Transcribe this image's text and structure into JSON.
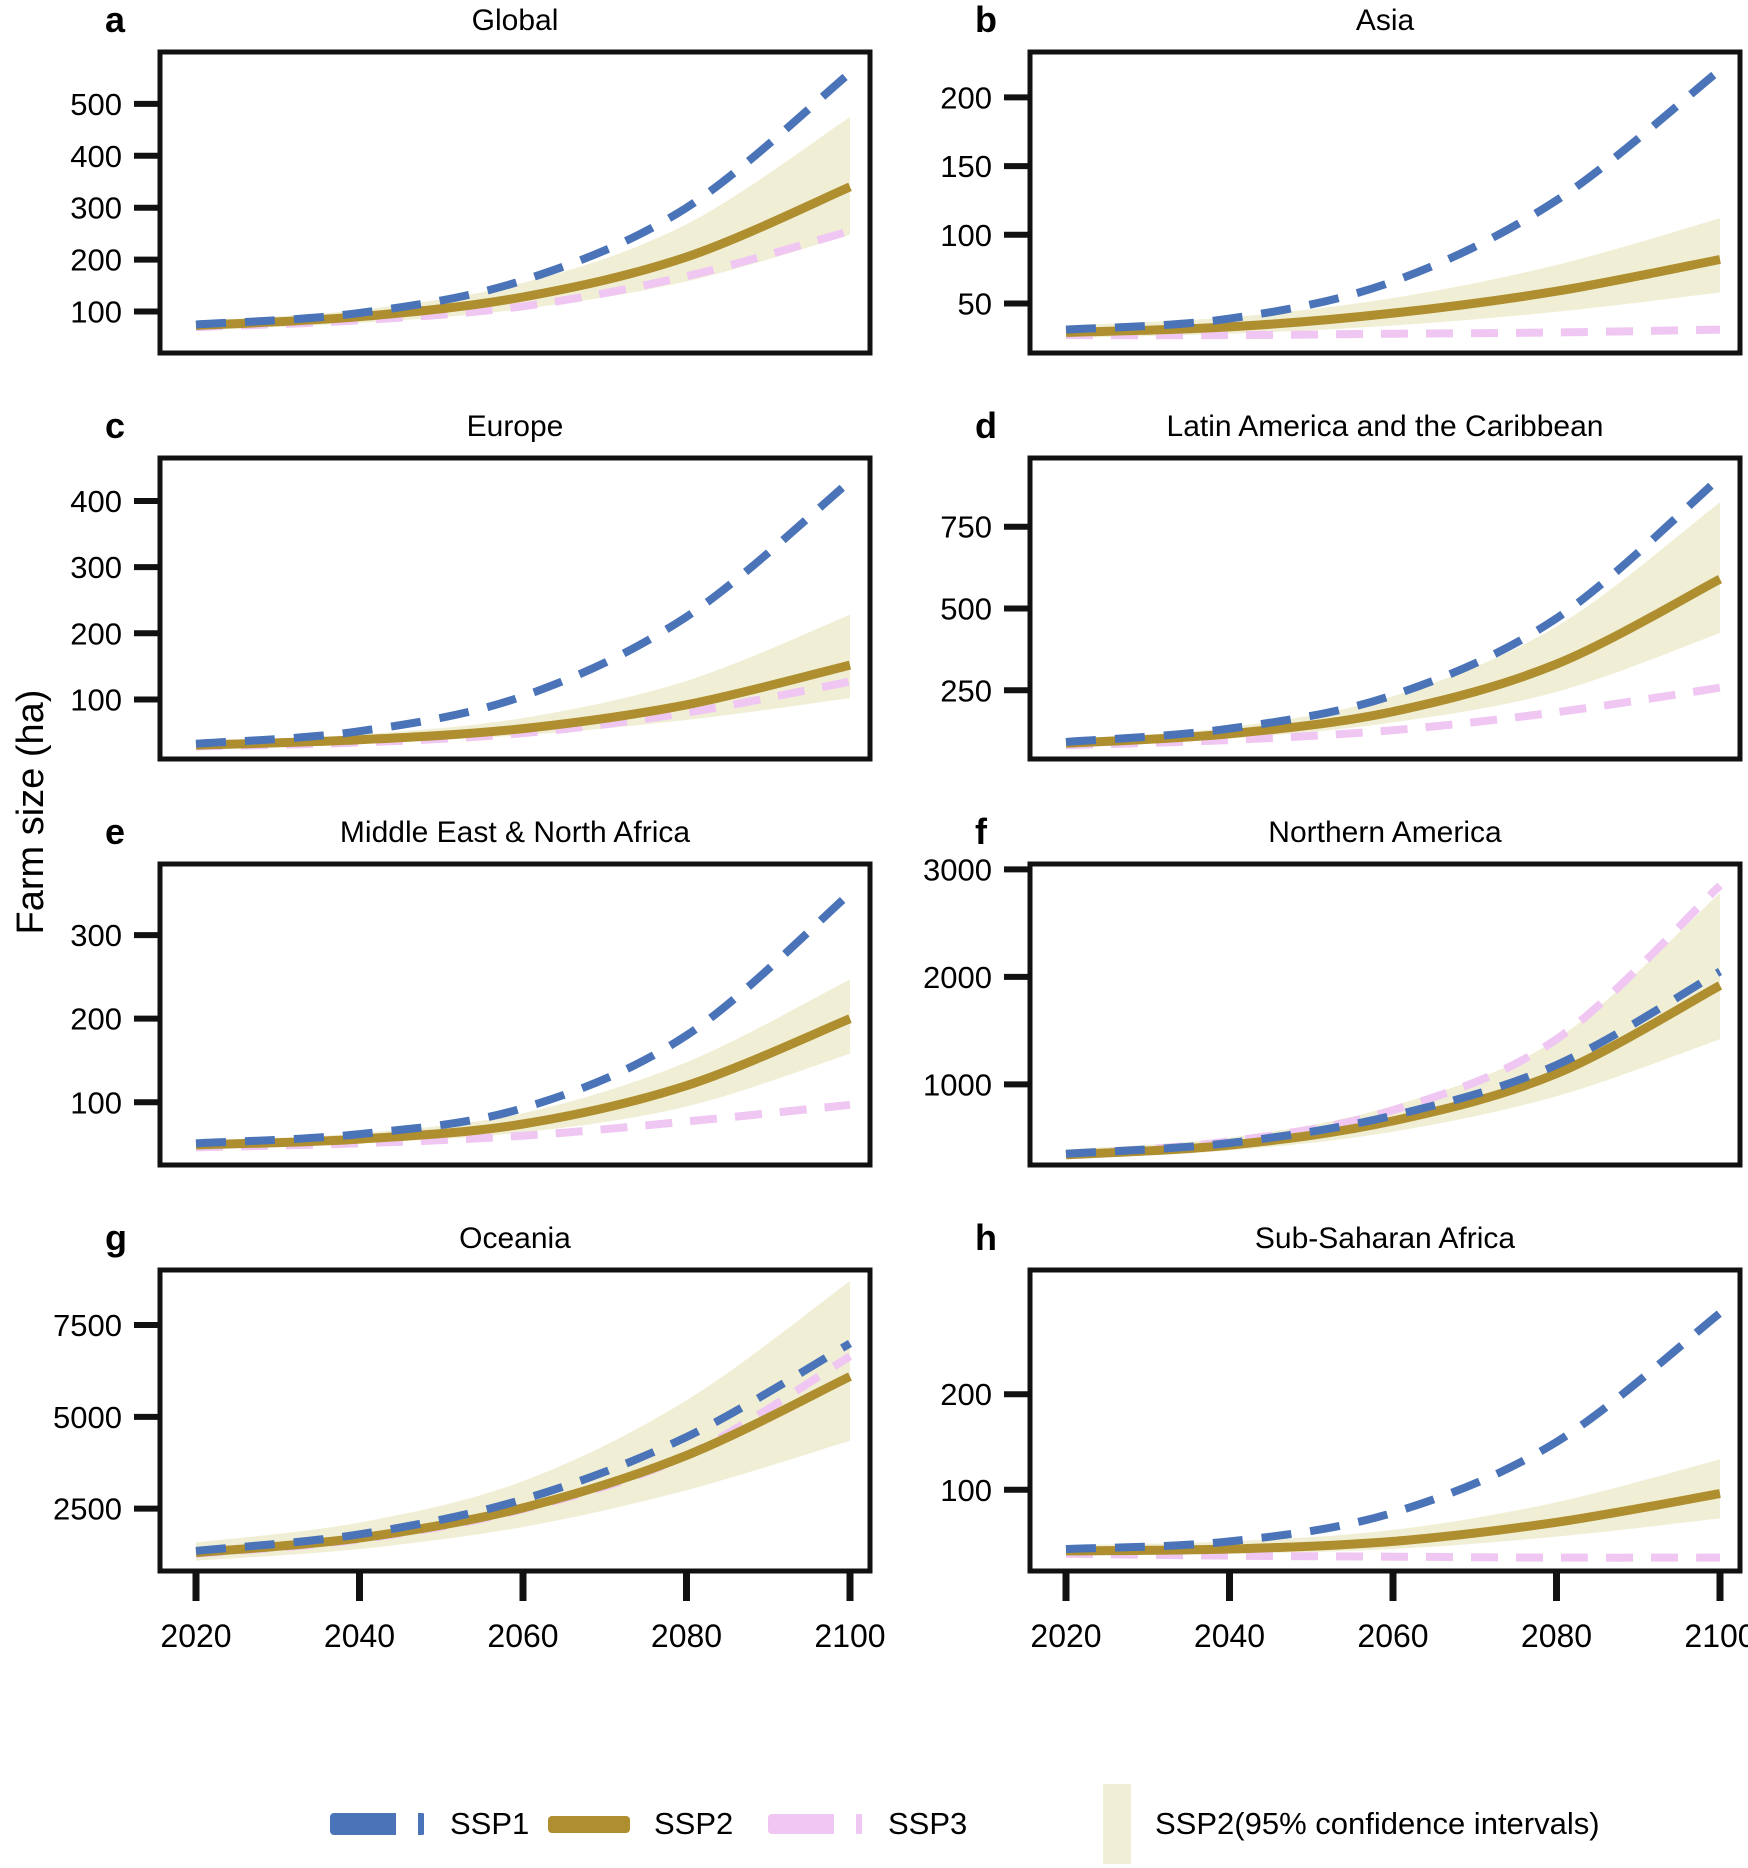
{
  "figure": {
    "y_axis_label": "Farm size (ha)",
    "colors": {
      "ssp1": "#4a73b8",
      "ssp2": "#ae8e2e",
      "ssp3": "#efc7f2",
      "ssp2_ci_band": "#f0efd5",
      "axis": "#111111"
    },
    "legend": [
      {
        "key": "ssp1",
        "label": "SSP1",
        "style": "dashed"
      },
      {
        "key": "ssp2",
        "label": "SSP2",
        "style": "solid"
      },
      {
        "key": "ssp3",
        "label": "SSP3",
        "style": "dashed"
      },
      {
        "key": "ssp2_ci",
        "label": "SSP2(95% confidence intervals)",
        "style": "fill"
      }
    ]
  },
  "chart_data": [
    {
      "type": "line",
      "letter": "a",
      "title": "Global",
      "x": [
        2020,
        2040,
        2060,
        2080,
        2100
      ],
      "xticks": [
        2020,
        2040,
        2060,
        2080,
        2100
      ],
      "show_xticks": false,
      "yticks": [
        100,
        200,
        300,
        400,
        500
      ],
      "ylim": [
        20,
        600
      ],
      "series": [
        {
          "name": "SSP1",
          "values": [
            75,
            97,
            160,
            300,
            560
          ]
        },
        {
          "name": "SSP2",
          "values": [
            73,
            90,
            128,
            205,
            340
          ]
        },
        {
          "name": "SSP3",
          "values": [
            70,
            83,
            110,
            168,
            255
          ]
        }
      ],
      "band": {
        "name": "SSP2 95% confidence interval",
        "low": [
          64,
          78,
          105,
          158,
          248
        ],
        "high": [
          82,
          103,
          155,
          268,
          475
        ]
      }
    },
    {
      "type": "line",
      "letter": "b",
      "title": "Asia",
      "x": [
        2020,
        2040,
        2060,
        2080,
        2100
      ],
      "xticks": [
        2020,
        2040,
        2060,
        2080,
        2100
      ],
      "show_xticks": false,
      "yticks": [
        50,
        100,
        150,
        200
      ],
      "ylim": [
        14,
        233
      ],
      "series": [
        {
          "name": "SSP1",
          "values": [
            31,
            39,
            66,
            125,
            220
          ]
        },
        {
          "name": "SSP2",
          "values": [
            29,
            33,
            43,
            59,
            82
          ]
        },
        {
          "name": "SSP3",
          "values": [
            27,
            27,
            28,
            29,
            31
          ]
        }
      ],
      "band": {
        "name": "SSP2 95% confidence interval",
        "low": [
          25,
          28,
          34,
          44,
          58
        ],
        "high": [
          34,
          40,
          54,
          78,
          112
        ]
      }
    },
    {
      "type": "line",
      "letter": "c",
      "title": "Europe",
      "x": [
        2020,
        2040,
        2060,
        2080,
        2100
      ],
      "xticks": [
        2020,
        2040,
        2060,
        2080,
        2100
      ],
      "show_xticks": false,
      "yticks": [
        100,
        200,
        300,
        400
      ],
      "ylim": [
        10,
        465
      ],
      "series": [
        {
          "name": "SSP1",
          "values": [
            33,
            52,
            105,
            225,
            430
          ]
        },
        {
          "name": "SSP2",
          "values": [
            31,
            39,
            56,
            92,
            152
          ]
        },
        {
          "name": "SSP3",
          "values": [
            29,
            35,
            49,
            80,
            127
          ]
        }
      ],
      "band": {
        "name": "SSP2 95% confidence interval",
        "low": [
          27,
          34,
          46,
          69,
          102
        ],
        "high": [
          36,
          47,
          72,
          128,
          228
        ]
      }
    },
    {
      "type": "line",
      "letter": "d",
      "title": "Latin America and the Caribbean",
      "x": [
        2020,
        2040,
        2060,
        2080,
        2100
      ],
      "xticks": [
        2020,
        2040,
        2060,
        2080,
        2100
      ],
      "show_xticks": false,
      "yticks": [
        250,
        500,
        750
      ],
      "ylim": [
        40,
        960
      ],
      "series": [
        {
          "name": "SSP1",
          "values": [
            92,
            133,
            235,
            470,
            900
          ]
        },
        {
          "name": "SSP2",
          "values": [
            88,
            117,
            185,
            330,
            590
          ]
        },
        {
          "name": "SSP3",
          "values": [
            82,
            98,
            128,
            183,
            258
          ]
        }
      ],
      "band": {
        "name": "SSP2 95% confidence interval",
        "low": [
          78,
          102,
          152,
          245,
          425
        ],
        "high": [
          100,
          137,
          232,
          445,
          825
        ]
      }
    },
    {
      "type": "line",
      "letter": "e",
      "title": "Middle East & North Africa",
      "x": [
        2020,
        2040,
        2060,
        2080,
        2100
      ],
      "xticks": [
        2020,
        2040,
        2060,
        2080,
        2100
      ],
      "show_xticks": false,
      "yticks": [
        100,
        200,
        300
      ],
      "ylim": [
        25,
        385
      ],
      "series": [
        {
          "name": "SSP1",
          "values": [
            51,
            62,
            93,
            180,
            350
          ]
        },
        {
          "name": "SSP2",
          "values": [
            49,
            56,
            74,
            120,
            200
          ]
        },
        {
          "name": "SSP3",
          "values": [
            46,
            51,
            60,
            77,
            97
          ]
        }
      ],
      "band": {
        "name": "SSP2 95% confidence interval",
        "low": [
          45,
          51,
          64,
          95,
          158
        ],
        "high": [
          54,
          63,
          87,
          148,
          247
        ]
      }
    },
    {
      "type": "line",
      "letter": "f",
      "title": "Northern America",
      "x": [
        2020,
        2040,
        2060,
        2080,
        2100
      ],
      "xticks": [
        2020,
        2040,
        2060,
        2080,
        2100
      ],
      "show_xticks": false,
      "yticks": [
        1000,
        2000,
        3000
      ],
      "ylim": [
        250,
        3050
      ],
      "series": [
        {
          "name": "SSP1",
          "values": [
            355,
            455,
            710,
            1180,
            2050
          ]
        },
        {
          "name": "SSP2",
          "values": [
            345,
            435,
            660,
            1100,
            1920
          ]
        },
        {
          "name": "SSP3",
          "values": [
            350,
            470,
            760,
            1420,
            2850
          ]
        }
      ],
      "band": {
        "name": "SSP2 95% confidence interval",
        "low": [
          310,
          385,
          560,
          890,
          1420
        ],
        "high": [
          395,
          505,
          800,
          1420,
          2780
        ]
      }
    },
    {
      "type": "line",
      "letter": "g",
      "title": "Oceania",
      "x": [
        2020,
        2040,
        2060,
        2080,
        2100
      ],
      "xticks": [
        2020,
        2040,
        2060,
        2080,
        2100
      ],
      "show_xticks": true,
      "yticks": [
        2500,
        5000,
        7500
      ],
      "ylim": [
        800,
        9000
      ],
      "series": [
        {
          "name": "SSP1",
          "values": [
            1350,
            1800,
            2750,
            4450,
            7000
          ]
        },
        {
          "name": "SSP2",
          "values": [
            1300,
            1700,
            2520,
            3950,
            6100
          ]
        },
        {
          "name": "SSP3",
          "values": [
            1270,
            1660,
            2480,
            3950,
            6650
          ]
        }
      ],
      "band": {
        "name": "SSP2 95% confidence interval",
        "low": [
          1080,
          1400,
          2000,
          3000,
          4350
        ],
        "high": [
          1580,
          2120,
          3250,
          5450,
          8700
        ]
      }
    },
    {
      "type": "line",
      "letter": "h",
      "title": "Sub-Saharan Africa",
      "x": [
        2020,
        2040,
        2060,
        2080,
        2100
      ],
      "xticks": [
        2020,
        2040,
        2060,
        2080,
        2100
      ],
      "show_xticks": true,
      "yticks": [
        100,
        200
      ],
      "ylim": [
        15,
        330
      ],
      "series": [
        {
          "name": "SSP1",
          "values": [
            38,
            46,
            76,
            150,
            285
          ]
        },
        {
          "name": "SSP2",
          "values": [
            36,
            38,
            46,
            66,
            96
          ]
        },
        {
          "name": "SSP3",
          "values": [
            33,
            31,
            30,
            29,
            29
          ]
        }
      ],
      "band": {
        "name": "SSP2 95% confidence interval",
        "low": [
          31,
          33,
          38,
          51,
          70
        ],
        "high": [
          42,
          46,
          58,
          87,
          132
        ]
      }
    }
  ]
}
